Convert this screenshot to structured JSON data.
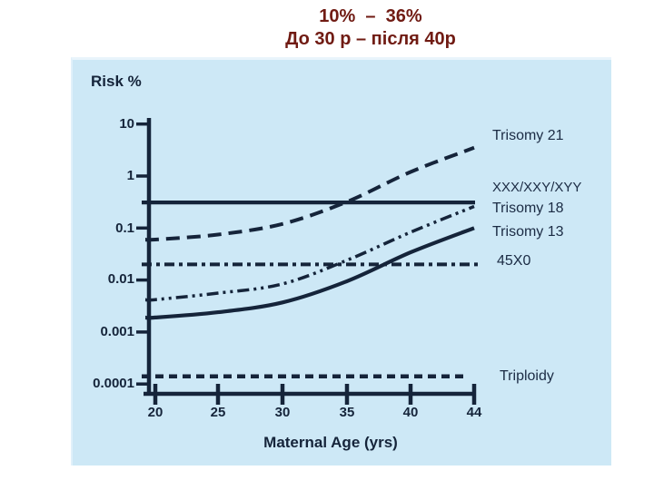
{
  "title": {
    "line1": "10%  –  36%",
    "line2": "До 30 р – після 40р"
  },
  "chart": {
    "risk_label": "Risk %",
    "xlabel": "Maternal Age (yrs)",
    "x_ticks": [
      "20",
      "25",
      "30",
      "35",
      "40",
      "44"
    ],
    "y_ticks": [
      "10",
      "1",
      "0.1",
      "0.01",
      "0.001",
      "0.0001"
    ]
  },
  "chart_data": {
    "type": "line",
    "x": [
      20,
      25,
      30,
      35,
      40,
      44
    ],
    "xlabel": "Maternal Age (yrs)",
    "ylabel": "Risk %",
    "yscale": "log",
    "ylim": [
      0.0001,
      10
    ],
    "grid": false,
    "legend_position": "right-outside-labels",
    "series": [
      {
        "name": "Trisomy 21",
        "style": "dashed",
        "values": [
          0.06,
          0.075,
          0.12,
          0.32,
          1.2,
          3.5
        ]
      },
      {
        "name": "XXX/XXY/XYY",
        "style": "solid",
        "values": [
          0.31,
          0.31,
          0.31,
          0.31,
          0.31,
          0.31
        ]
      },
      {
        "name": "Trisomy 18",
        "style": "dash-dot-dot",
        "values": [
          0.0042,
          0.0056,
          0.0084,
          0.024,
          0.083,
          0.26
        ]
      },
      {
        "name": "Trisomy 13",
        "style": "solid",
        "values": [
          0.0019,
          0.0024,
          0.0037,
          0.0095,
          0.034,
          0.1
        ]
      },
      {
        "name": "45X0",
        "style": "dash-dot",
        "values": [
          0.02,
          0.02,
          0.02,
          0.02,
          0.02,
          0.02
        ]
      },
      {
        "name": "Triploidy",
        "style": "dashed-short",
        "values": [
          0.00014,
          0.00014,
          0.00014,
          0.00014,
          0.00014,
          0.00014
        ]
      }
    ]
  },
  "colors": {
    "panel_background": "#cde8f6",
    "ink": "#15243a",
    "title_text": "#701b13"
  }
}
